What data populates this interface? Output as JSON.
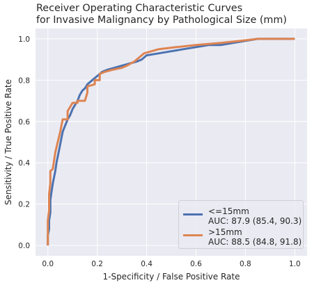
{
  "chart_data": {
    "type": "line",
    "title": [
      "Receiver Operating Characteristic Curves",
      "for Invasive Malignancy by Pathological Size (mm)"
    ],
    "xlabel": "1-Specificity / False Positive Rate",
    "ylabel": "Sensitivity / True Positive Rate",
    "xlim": [
      -0.05,
      1.05
    ],
    "ylim": [
      -0.05,
      1.05
    ],
    "xticks": [
      0.0,
      0.2,
      0.4,
      0.6,
      0.8,
      1.0
    ],
    "yticks": [
      0.0,
      0.2,
      0.4,
      0.6,
      0.8,
      1.0
    ],
    "xtick_labels": [
      "0.0",
      "0.2",
      "0.4",
      "0.6",
      "0.8",
      "1.0"
    ],
    "ytick_labels": [
      "0.0",
      "0.2",
      "0.4",
      "0.6",
      "0.8",
      "1.0"
    ],
    "grid": true,
    "legend_position": "lower-right",
    "series": [
      {
        "name": "<=15mm",
        "auc_label": "AUC: 87.9 (85.4, 90.3)",
        "color": "#4c72b0",
        "points": [
          [
            0.0,
            0.0
          ],
          [
            0.0,
            0.05
          ],
          [
            0.005,
            0.08
          ],
          [
            0.005,
            0.12
          ],
          [
            0.01,
            0.16
          ],
          [
            0.01,
            0.22
          ],
          [
            0.015,
            0.26
          ],
          [
            0.02,
            0.3
          ],
          [
            0.025,
            0.33
          ],
          [
            0.03,
            0.36
          ],
          [
            0.035,
            0.4
          ],
          [
            0.04,
            0.43
          ],
          [
            0.045,
            0.46
          ],
          [
            0.05,
            0.49
          ],
          [
            0.055,
            0.52
          ],
          [
            0.06,
            0.55
          ],
          [
            0.07,
            0.58
          ],
          [
            0.08,
            0.61
          ],
          [
            0.09,
            0.63
          ],
          [
            0.1,
            0.66
          ],
          [
            0.11,
            0.68
          ],
          [
            0.12,
            0.7
          ],
          [
            0.13,
            0.73
          ],
          [
            0.14,
            0.75
          ],
          [
            0.15,
            0.76
          ],
          [
            0.16,
            0.78
          ],
          [
            0.18,
            0.8
          ],
          [
            0.2,
            0.82
          ],
          [
            0.22,
            0.84
          ],
          [
            0.24,
            0.85
          ],
          [
            0.27,
            0.86
          ],
          [
            0.3,
            0.87
          ],
          [
            0.33,
            0.88
          ],
          [
            0.36,
            0.89
          ],
          [
            0.38,
            0.9
          ],
          [
            0.4,
            0.92
          ],
          [
            0.45,
            0.93
          ],
          [
            0.5,
            0.94
          ],
          [
            0.55,
            0.95
          ],
          [
            0.6,
            0.96
          ],
          [
            0.65,
            0.97
          ],
          [
            0.7,
            0.97
          ],
          [
            0.75,
            0.98
          ],
          [
            0.8,
            0.99
          ],
          [
            0.85,
            1.0
          ],
          [
            1.0,
            1.0
          ]
        ]
      },
      {
        "name": ">15mm",
        "auc_label": "AUC: 88.5 (84.8, 91.8)",
        "color": "#dd8452",
        "points": [
          [
            0.0,
            0.0
          ],
          [
            0.0,
            0.12
          ],
          [
            0.005,
            0.17
          ],
          [
            0.005,
            0.25
          ],
          [
            0.01,
            0.3
          ],
          [
            0.01,
            0.36
          ],
          [
            0.02,
            0.37
          ],
          [
            0.03,
            0.45
          ],
          [
            0.04,
            0.5
          ],
          [
            0.05,
            0.55
          ],
          [
            0.06,
            0.61
          ],
          [
            0.08,
            0.61
          ],
          [
            0.08,
            0.65
          ],
          [
            0.1,
            0.69
          ],
          [
            0.12,
            0.69
          ],
          [
            0.12,
            0.7
          ],
          [
            0.15,
            0.7
          ],
          [
            0.16,
            0.74
          ],
          [
            0.16,
            0.77
          ],
          [
            0.19,
            0.78
          ],
          [
            0.19,
            0.8
          ],
          [
            0.21,
            0.8
          ],
          [
            0.21,
            0.83
          ],
          [
            0.23,
            0.84
          ],
          [
            0.26,
            0.85
          ],
          [
            0.3,
            0.86
          ],
          [
            0.32,
            0.87
          ],
          [
            0.35,
            0.89
          ],
          [
            0.37,
            0.91
          ],
          [
            0.39,
            0.93
          ],
          [
            0.42,
            0.94
          ],
          [
            0.45,
            0.95
          ],
          [
            0.52,
            0.96
          ],
          [
            0.6,
            0.97
          ],
          [
            0.7,
            0.98
          ],
          [
            0.78,
            0.99
          ],
          [
            0.85,
            1.0
          ],
          [
            1.0,
            1.0
          ]
        ]
      }
    ]
  }
}
